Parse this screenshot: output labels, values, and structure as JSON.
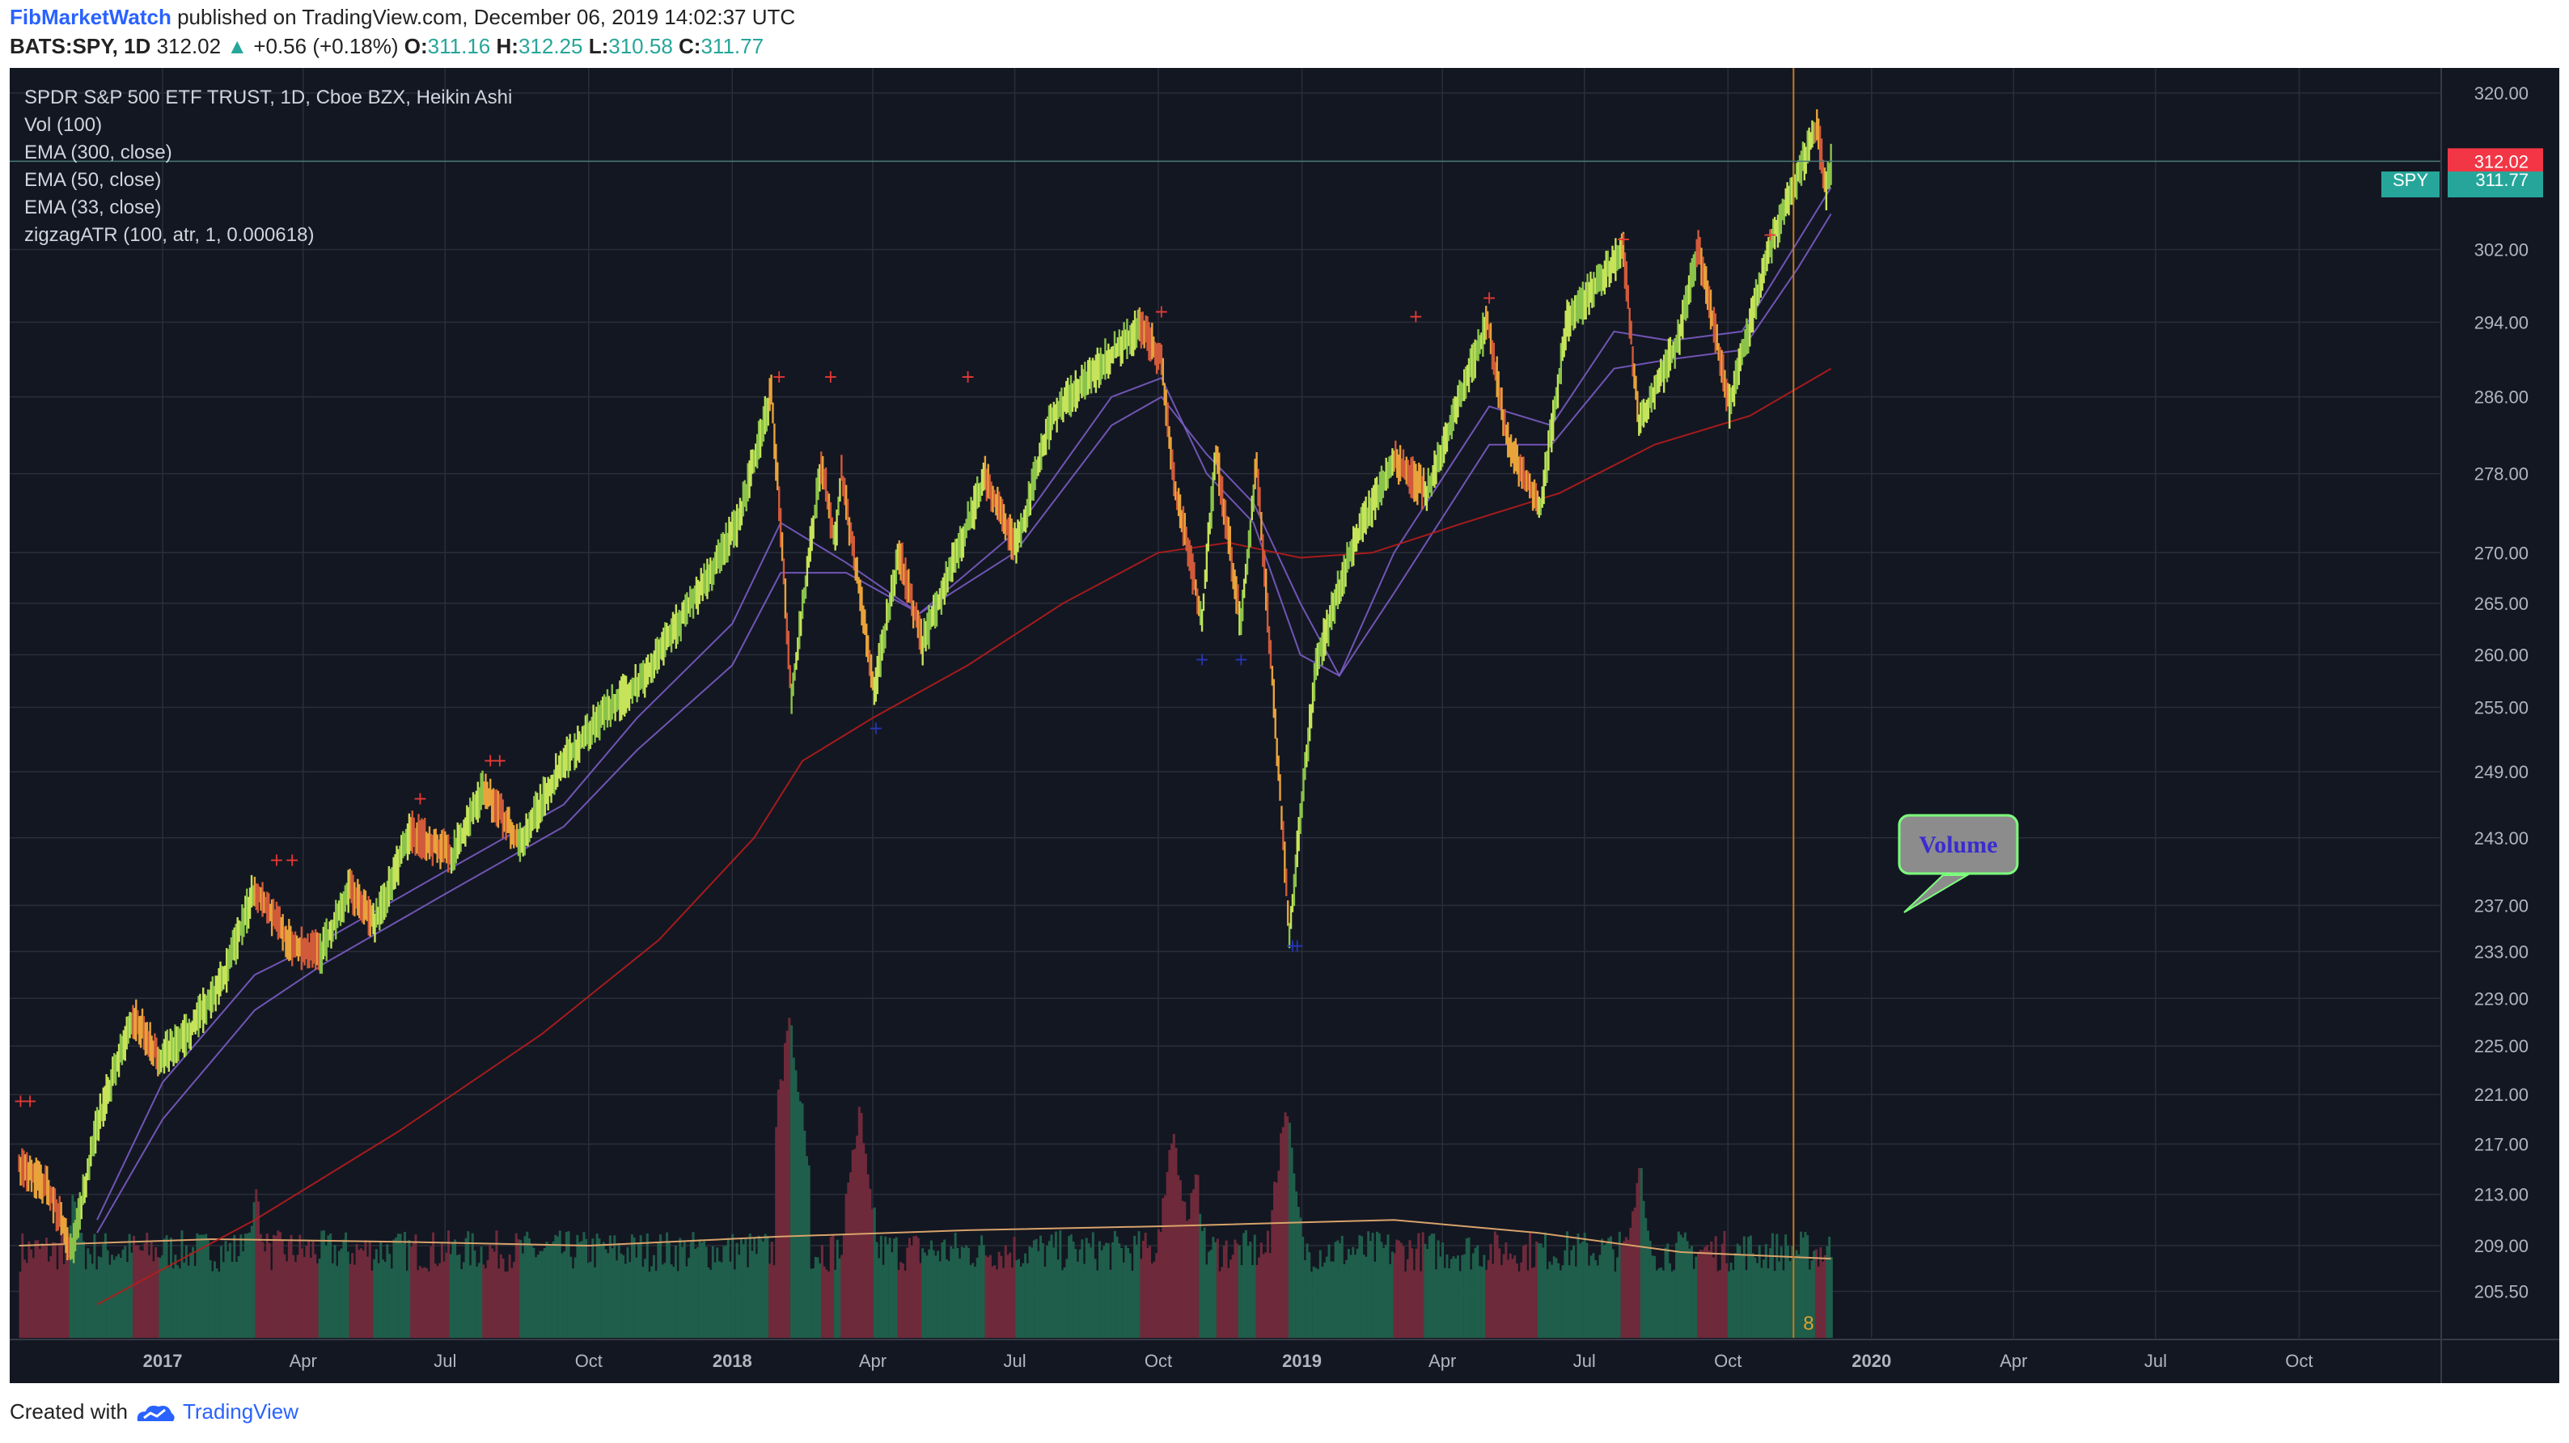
{
  "header": {
    "author": "FibMarketWatch",
    "published_text": "published on TradingView.com, December 06, 2019 14:02:37 UTC",
    "symbol_text": "BATS:SPY, 1D",
    "last": "312.02",
    "change_text": "+0.56 (+0.18%)",
    "o_label": "O:",
    "o_value": "311.16",
    "h_label": "H:",
    "h_value": "312.25",
    "l_label": "L:",
    "l_value": "310.58",
    "c_label": "C:",
    "c_value": "311.77"
  },
  "legend": [
    "SPDR S&P 500 ETF TRUST, 1D, Cboe BZX, Heikin Ashi",
    "Vol (100)",
    "EMA (300, close)",
    "EMA (50, close)",
    "EMA (33, close)",
    "zigzagATR (100, atr, 1, 0.000618)"
  ],
  "price_labels": {
    "last_price": "312.02",
    "spy_label": "SPY",
    "spy_price": "311.77",
    "last_color": "#f23645",
    "spy_color": "#26a69a"
  },
  "callout": {
    "text": "Volume"
  },
  "vertical_marker_label": "8",
  "footer": {
    "created_text": "Created with",
    "brand": "TradingView"
  },
  "colors": {
    "background": "#131722",
    "grid": "#2a2e39",
    "ema300": "#b71c1c",
    "ema_fast": "#7b5cc4",
    "vol_up": "#1f5e4a",
    "vol_down": "#6e2a3a",
    "marker_red": "#e53935",
    "marker_blue": "#2436b8",
    "marker_line": "#c77a1f"
  },
  "chart_data": {
    "type": "line",
    "title": "SPDR S&P 500 ETF TRUST, 1D, Cboe BZX, Heikin Ashi",
    "x_tick_labels": [
      "2017",
      "Apr",
      "Jul",
      "Oct",
      "2018",
      "Apr",
      "Jul",
      "Oct",
      "2019",
      "Apr",
      "Jul",
      "Oct",
      "2020",
      "Apr",
      "Jul",
      "Oct"
    ],
    "x_tick_dates": [
      "2017-01-01",
      "2017-04-01",
      "2017-07-01",
      "2017-10-01",
      "2018-01-01",
      "2018-04-01",
      "2018-07-01",
      "2018-10-01",
      "2019-01-01",
      "2019-04-01",
      "2019-07-01",
      "2019-10-01",
      "2020-01-01",
      "2020-04-01",
      "2020-07-01",
      "2020-10-01"
    ],
    "y_ticks": [
      205.5,
      209,
      213,
      217,
      221,
      225,
      229,
      233,
      237,
      243,
      249,
      255,
      260,
      265,
      270,
      278,
      286,
      294,
      302,
      320
    ],
    "y_tick_labels": [
      "205.50",
      "209.00",
      "213.00",
      "217.00",
      "221.00",
      "225.00",
      "229.00",
      "233.00",
      "237.00",
      "243.00",
      "249.00",
      "255.00",
      "260.00",
      "265.00",
      "270.00",
      "278.00",
      "286.00",
      "294.00",
      "302.00",
      "320.00"
    ],
    "ylim": [
      202,
      322
    ],
    "log_scale": true,
    "grid": true,
    "xlim": [
      "2016-09-25",
      "2020-12-31"
    ],
    "series": [
      {
        "name": "SPY",
        "points": [
          [
            "2016-10-01",
            215.5
          ],
          [
            "2016-10-20",
            213.5
          ],
          [
            "2016-11-04",
            208.5
          ],
          [
            "2016-11-20",
            218.5
          ],
          [
            "2016-12-13",
            227.5
          ],
          [
            "2016-12-30",
            224
          ],
          [
            "2017-01-20",
            226.5
          ],
          [
            "2017-02-10",
            231
          ],
          [
            "2017-03-01",
            238.5
          ],
          [
            "2017-03-25",
            233.5
          ],
          [
            "2017-04-13",
            233
          ],
          [
            "2017-05-01",
            238.5
          ],
          [
            "2017-05-17",
            235.5
          ],
          [
            "2017-06-09",
            243.5
          ],
          [
            "2017-07-06",
            241.5
          ],
          [
            "2017-07-26",
            247.5
          ],
          [
            "2017-08-18",
            242.5
          ],
          [
            "2017-09-15",
            250
          ],
          [
            "2017-10-15",
            255
          ],
          [
            "2017-11-07",
            258
          ],
          [
            "2017-12-01",
            264
          ],
          [
            "2017-12-18",
            268
          ],
          [
            "2018-01-05",
            273
          ],
          [
            "2018-01-26",
            286.5
          ],
          [
            "2018-02-08",
            256
          ],
          [
            "2018-02-27",
            279
          ],
          [
            "2018-03-08",
            271
          ],
          [
            "2018-03-12",
            278
          ],
          [
            "2018-04-02",
            256.5
          ],
          [
            "2018-04-18",
            270
          ],
          [
            "2018-05-03",
            261
          ],
          [
            "2018-06-12",
            277.5
          ],
          [
            "2018-07-02",
            270.5
          ],
          [
            "2018-07-25",
            284
          ],
          [
            "2018-08-29",
            290
          ],
          [
            "2018-09-20",
            293.5
          ],
          [
            "2018-10-03",
            290
          ],
          [
            "2018-10-11",
            277
          ],
          [
            "2018-10-29",
            263.5
          ],
          [
            "2018-11-07",
            280
          ],
          [
            "2018-11-23",
            263
          ],
          [
            "2018-12-03",
            279
          ],
          [
            "2018-12-24",
            234.5
          ],
          [
            "2019-01-10",
            259
          ],
          [
            "2019-02-01",
            270
          ],
          [
            "2019-03-01",
            279.5
          ],
          [
            "2019-03-22",
            276
          ],
          [
            "2019-04-30",
            294
          ],
          [
            "2019-05-13",
            281
          ],
          [
            "2019-06-03",
            274.5
          ],
          [
            "2019-06-20",
            294
          ],
          [
            "2019-07-26",
            302
          ],
          [
            "2019-08-05",
            283
          ],
          [
            "2019-08-30",
            292
          ],
          [
            "2019-09-12",
            302
          ],
          [
            "2019-10-02",
            285
          ],
          [
            "2019-10-28",
            302.5
          ],
          [
            "2019-11-27",
            316
          ],
          [
            "2019-12-03",
            309
          ],
          [
            "2019-12-06",
            311.77
          ]
        ]
      },
      {
        "name": "EMA (33, close)",
        "points": [
          [
            "2016-11-20",
            211
          ],
          [
            "2017-01-01",
            222
          ],
          [
            "2017-03-01",
            231
          ],
          [
            "2017-04-15",
            234
          ],
          [
            "2017-07-01",
            240
          ],
          [
            "2017-09-15",
            246
          ],
          [
            "2017-11-01",
            254
          ],
          [
            "2018-01-01",
            263
          ],
          [
            "2018-02-01",
            273
          ],
          [
            "2018-03-15",
            269
          ],
          [
            "2018-05-01",
            264
          ],
          [
            "2018-07-01",
            272
          ],
          [
            "2018-09-01",
            286
          ],
          [
            "2018-10-03",
            288
          ],
          [
            "2018-11-01",
            278
          ],
          [
            "2018-12-01",
            273
          ],
          [
            "2018-12-31",
            260
          ],
          [
            "2019-01-25",
            258
          ],
          [
            "2019-03-01",
            270
          ],
          [
            "2019-05-01",
            285
          ],
          [
            "2019-06-10",
            283
          ],
          [
            "2019-07-20",
            293
          ],
          [
            "2019-08-25",
            292
          ],
          [
            "2019-10-10",
            293
          ],
          [
            "2019-11-15",
            303
          ],
          [
            "2019-12-06",
            309
          ]
        ]
      },
      {
        "name": "EMA (50, close)",
        "points": [
          [
            "2016-11-20",
            210
          ],
          [
            "2017-01-01",
            219
          ],
          [
            "2017-03-01",
            228
          ],
          [
            "2017-04-15",
            232
          ],
          [
            "2017-07-01",
            238
          ],
          [
            "2017-09-15",
            244
          ],
          [
            "2017-11-01",
            251
          ],
          [
            "2018-01-01",
            259
          ],
          [
            "2018-02-01",
            268
          ],
          [
            "2018-03-15",
            268
          ],
          [
            "2018-05-01",
            264
          ],
          [
            "2018-07-01",
            270
          ],
          [
            "2018-09-01",
            283
          ],
          [
            "2018-10-03",
            286
          ],
          [
            "2018-11-01",
            280
          ],
          [
            "2018-12-01",
            275
          ],
          [
            "2018-12-31",
            265
          ],
          [
            "2019-01-25",
            258
          ],
          [
            "2019-03-01",
            266
          ],
          [
            "2019-05-01",
            281
          ],
          [
            "2019-06-10",
            281
          ],
          [
            "2019-07-20",
            289
          ],
          [
            "2019-08-25",
            290
          ],
          [
            "2019-10-10",
            291
          ],
          [
            "2019-11-15",
            300
          ],
          [
            "2019-12-06",
            306
          ]
        ]
      },
      {
        "name": "EMA (300, close)",
        "points": [
          [
            "2016-11-20",
            204.5
          ],
          [
            "2017-03-01",
            211
          ],
          [
            "2017-06-01",
            218
          ],
          [
            "2017-09-01",
            226
          ],
          [
            "2017-11-15",
            234
          ],
          [
            "2018-01-15",
            243
          ],
          [
            "2018-02-15",
            250
          ],
          [
            "2018-04-01",
            254
          ],
          [
            "2018-06-01",
            259
          ],
          [
            "2018-08-01",
            265
          ],
          [
            "2018-10-01",
            270
          ],
          [
            "2018-11-15",
            271
          ],
          [
            "2018-12-31",
            269.5
          ],
          [
            "2019-02-15",
            270
          ],
          [
            "2019-04-15",
            273
          ],
          [
            "2019-06-15",
            276
          ],
          [
            "2019-08-15",
            281
          ],
          [
            "2019-10-15",
            284
          ],
          [
            "2019-12-06",
            289
          ]
        ]
      }
    ],
    "volume_avg": [
      [
        "2016-10-01",
        209
      ],
      [
        "2017-02-01",
        209.5
      ],
      [
        "2017-06-01",
        209.3
      ],
      [
        "2017-10-01",
        209
      ],
      [
        "2018-02-01",
        209.7
      ],
      [
        "2018-06-01",
        210.2
      ],
      [
        "2018-10-01",
        210.5
      ],
      [
        "2019-01-01",
        210.8
      ],
      [
        "2019-03-01",
        211
      ],
      [
        "2019-06-01",
        210
      ],
      [
        "2019-09-01",
        208.5
      ],
      [
        "2019-12-06",
        208
      ]
    ],
    "volume_spikes": [
      [
        "2016-11-04",
        214
      ],
      [
        "2017-03-01",
        214
      ],
      [
        "2018-02-06",
        228
      ],
      [
        "2018-02-09",
        224
      ],
      [
        "2018-03-23",
        221
      ],
      [
        "2018-10-10",
        219
      ],
      [
        "2018-10-24",
        216
      ],
      [
        "2018-12-21",
        221
      ],
      [
        "2019-08-05",
        216
      ]
    ],
    "zigzag_highs": [
      [
        "2016-10-02",
        220
      ],
      [
        "2016-10-08",
        220
      ],
      [
        "2017-03-15",
        240.5
      ],
      [
        "2017-03-25",
        240.5
      ],
      [
        "2017-06-15",
        246
      ],
      [
        "2017-07-30",
        249.5
      ],
      [
        "2017-08-05",
        249.5
      ],
      [
        "2018-01-31",
        287.5
      ],
      [
        "2018-03-05",
        287.5
      ],
      [
        "2018-06-01",
        287.5
      ],
      [
        "2018-10-03",
        294.5
      ],
      [
        "2019-03-15",
        294
      ],
      [
        "2019-05-01",
        296
      ],
      [
        "2019-07-26",
        302.5
      ],
      [
        "2019-10-28",
        303
      ]
    ],
    "zigzag_lows": [
      [
        "2018-04-03",
        252.5
      ],
      [
        "2018-10-29",
        259
      ],
      [
        "2018-11-23",
        259
      ],
      [
        "2018-12-26",
        233
      ],
      [
        "2018-12-29",
        233
      ]
    ],
    "vertical_marker_date": "2019-11-12"
  }
}
